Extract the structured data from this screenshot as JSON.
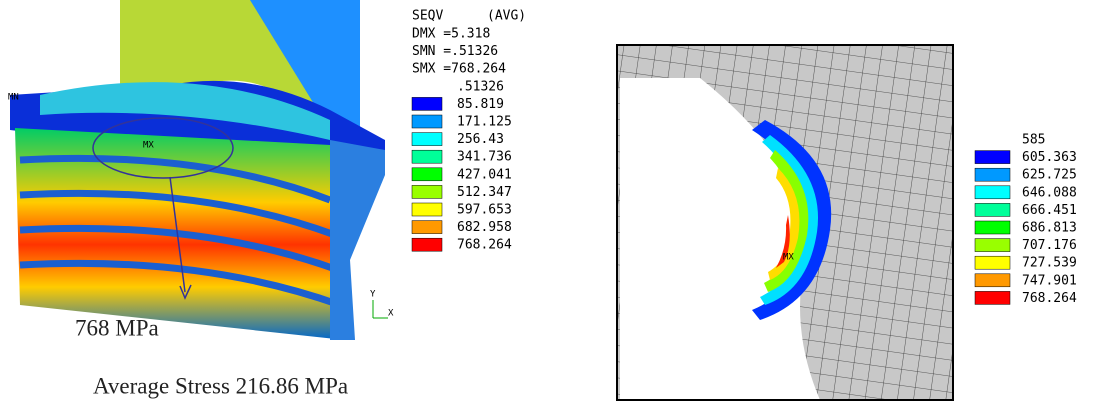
{
  "left_panel": {
    "legend": {
      "header": [
        "SEQV",
        "(AVG)"
      ],
      "stats": [
        "DMX =5.318",
        "SMN =.51326",
        "SMX =768.264"
      ],
      "levels": [
        ".51326",
        "85.819",
        "171.125",
        "256.43",
        "341.736",
        "427.041",
        "512.347",
        "597.653",
        "682.958",
        "768.264"
      ]
    },
    "model_labels": [
      "MN",
      "MX"
    ],
    "axis_labels": [
      "Y",
      "X"
    ],
    "annotation": "768 MPa",
    "caption": "Average Stress 216.86 MPa"
  },
  "right_panel": {
    "legend": {
      "levels": [
        "585",
        "605.363",
        "625.725",
        "646.088",
        "666.451",
        "686.813",
        "707.176",
        "727.539",
        "747.901",
        "768.264"
      ]
    },
    "model_label": "MX"
  },
  "legend_colors": [
    "#0000ff",
    "#0099ff",
    "#00ffff",
    "#00ff99",
    "#00ff00",
    "#99ff00",
    "#ffff00",
    "#ff9900",
    "#ff0000"
  ]
}
